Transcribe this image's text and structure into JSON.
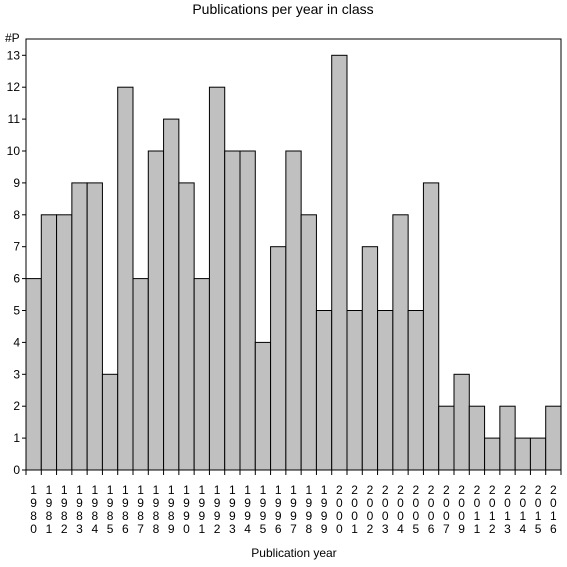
{
  "chart_data": {
    "type": "bar",
    "title": "Publications per year in class",
    "ylabel": "#P",
    "xlabel": "Publication year",
    "ylim": [
      0,
      13.5
    ],
    "yticks": [
      0,
      1,
      2,
      3,
      4,
      5,
      6,
      7,
      8,
      9,
      10,
      11,
      12,
      13
    ],
    "grid": false,
    "legend": "none",
    "bar_color": "#c0c0c0",
    "edge_color": "#000000",
    "categories": [
      "1980",
      "1981",
      "1982",
      "1983",
      "1984",
      "1985",
      "1986",
      "1987",
      "1988",
      "1989",
      "1990",
      "1991",
      "1992",
      "1993",
      "1994",
      "1995",
      "1996",
      "1997",
      "1998",
      "1999",
      "2000",
      "2001",
      "2002",
      "2003",
      "2004",
      "2005",
      "2006",
      "2007",
      "2009",
      "2011",
      "2012",
      "2013",
      "2014",
      "2015",
      "2016"
    ],
    "values": [
      6,
      8,
      8,
      9,
      9,
      3,
      12,
      6,
      10,
      11,
      9,
      6,
      12,
      10,
      10,
      4,
      7,
      10,
      8,
      5,
      13,
      5,
      7,
      5,
      8,
      5,
      9,
      2,
      3,
      2,
      1,
      2,
      1,
      1,
      2
    ]
  }
}
